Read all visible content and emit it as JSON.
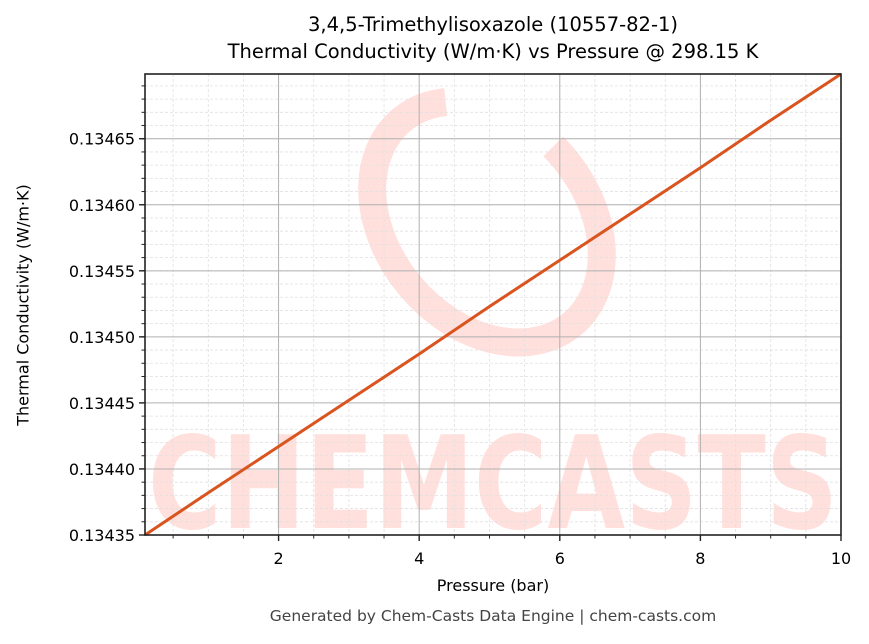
{
  "title_line1": "3,4,5-Trimethylisoxazole (10557-82-1)",
  "title_line2": "Thermal Conductivity (W/m·K) vs Pressure @ 298.15 K",
  "xlabel": "Pressure (bar)",
  "ylabel": "Thermal Conductivity (W/m·K)",
  "footer": "Generated by Chem-Casts Data Engine | chem-casts.com",
  "watermark": "CHEMCASTS",
  "colors": {
    "line": "#d9541e",
    "watermark": "#ffe0dc",
    "major_grid": "#b0b0b0",
    "minor_grid": "#e0e0e0",
    "footer_text": "#444444"
  },
  "chart_data": {
    "type": "line",
    "title": "3,4,5-Trimethylisoxazole (10557-82-1)\nThermal Conductivity (W/m·K) vs Pressure @ 298.15 K",
    "xlabel": "Pressure (bar)",
    "ylabel": "Thermal Conductivity (W/m·K)",
    "xlim": [
      0.1,
      10
    ],
    "ylim": [
      0.13435,
      0.134699
    ],
    "x_ticks": [
      2,
      4,
      6,
      8,
      10
    ],
    "x_tick_labels": [
      "2",
      "4",
      "6",
      "8",
      "10"
    ],
    "y_ticks": [
      0.13435,
      0.1344,
      0.13445,
      0.1345,
      0.13455,
      0.1346,
      0.13465
    ],
    "y_tick_labels": [
      "0.13435",
      "0.13440",
      "0.13445",
      "0.13450",
      "0.13455",
      "0.13460",
      "0.13465"
    ],
    "x_minor_step": 0.5,
    "y_minor_step": 1e-05,
    "grid": true,
    "legend": null,
    "series": [
      {
        "name": "Thermal Conductivity",
        "x": [
          0.1,
          1,
          2,
          3,
          4,
          5,
          6,
          7,
          8,
          9,
          10
        ],
        "y": [
          0.13435,
          0.134382,
          0.134417,
          0.134452,
          0.134487,
          0.134523,
          0.134558,
          0.134593,
          0.134628,
          0.134664,
          0.134699
        ]
      }
    ]
  }
}
